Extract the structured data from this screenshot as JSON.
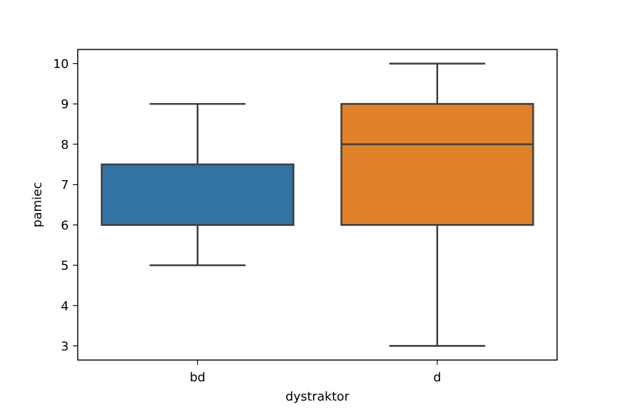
{
  "chart_data": {
    "type": "box",
    "title": "",
    "xlabel": "dystraktor",
    "ylabel": "pamiec",
    "categories": [
      "bd",
      "d"
    ],
    "boxes": [
      {
        "category": "bd",
        "whisker_low": 5,
        "q1": 6,
        "median": 6,
        "q3": 7.5,
        "whisker_high": 9,
        "color": "#3274a1"
      },
      {
        "category": "d",
        "whisker_low": 3,
        "q1": 6,
        "median": 8,
        "q3": 9,
        "whisker_high": 10,
        "color": "#e1812c"
      }
    ],
    "ylim": [
      2.65,
      10.35
    ],
    "yticks": [
      3,
      4,
      5,
      6,
      7,
      8,
      9,
      10
    ],
    "grid": false,
    "legend": "none"
  }
}
